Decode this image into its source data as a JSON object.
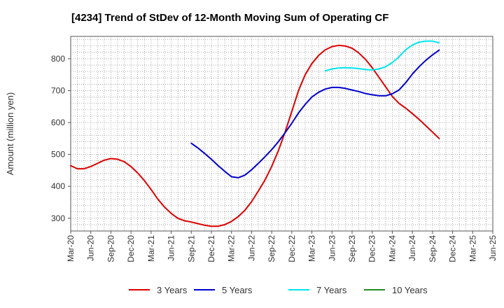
{
  "chart_data": {
    "type": "line",
    "title": "[4234]  Trend of StDev of 12-Month Moving Sum of Operating CF",
    "xlabel": "",
    "ylabel": "Amount (million yen)",
    "ylim": [
      260,
      870
    ],
    "yticks": [
      300,
      400,
      500,
      600,
      700,
      800
    ],
    "x_ticks": [
      "Mar-20",
      "Jun-20",
      "Sep-20",
      "Dec-20",
      "Mar-21",
      "Jun-21",
      "Sep-21",
      "Dec-21",
      "Mar-22",
      "Jun-22",
      "Sep-22",
      "Dec-22",
      "Mar-23",
      "Jun-23",
      "Sep-23",
      "Dec-23",
      "Mar-24",
      "Jun-24",
      "Sep-24",
      "Dec-24",
      "Mar-25",
      "Jun-25"
    ],
    "grid": true,
    "legend_position": "bottom",
    "series": [
      {
        "name": "3 Years",
        "color": "#dd0000",
        "points": [
          [
            0,
            465
          ],
          [
            1,
            455
          ],
          [
            2,
            455
          ],
          [
            3,
            462
          ],
          [
            4,
            472
          ],
          [
            5,
            482
          ],
          [
            6,
            487
          ],
          [
            7,
            485
          ],
          [
            8,
            477
          ],
          [
            9,
            462
          ],
          [
            10,
            442
          ],
          [
            11,
            418
          ],
          [
            12,
            390
          ],
          [
            13,
            360
          ],
          [
            14,
            335
          ],
          [
            15,
            315
          ],
          [
            16,
            300
          ],
          [
            17,
            292
          ],
          [
            18,
            288
          ],
          [
            19,
            283
          ],
          [
            20,
            278
          ],
          [
            21,
            275
          ],
          [
            22,
            275
          ],
          [
            23,
            280
          ],
          [
            24,
            290
          ],
          [
            25,
            305
          ],
          [
            26,
            325
          ],
          [
            27,
            352
          ],
          [
            28,
            385
          ],
          [
            29,
            420
          ],
          [
            30,
            462
          ],
          [
            31,
            512
          ],
          [
            32,
            570
          ],
          [
            33,
            635
          ],
          [
            34,
            700
          ],
          [
            35,
            750
          ],
          [
            36,
            785
          ],
          [
            37,
            810
          ],
          [
            38,
            828
          ],
          [
            39,
            838
          ],
          [
            40,
            842
          ],
          [
            41,
            840
          ],
          [
            42,
            833
          ],
          [
            43,
            818
          ],
          [
            44,
            798
          ],
          [
            45,
            772
          ],
          [
            46,
            742
          ],
          [
            47,
            712
          ],
          [
            48,
            682
          ],
          [
            49,
            660
          ],
          [
            50,
            645
          ],
          [
            51,
            628
          ],
          [
            52,
            610
          ],
          [
            53,
            590
          ],
          [
            54,
            570
          ],
          [
            55,
            550
          ]
        ]
      },
      {
        "name": "5 Years",
        "color": "#0000cc",
        "points": [
          [
            18,
            535
          ],
          [
            19,
            520
          ],
          [
            20,
            503
          ],
          [
            21,
            485
          ],
          [
            22,
            465
          ],
          [
            23,
            447
          ],
          [
            24,
            430
          ],
          [
            25,
            427
          ],
          [
            26,
            435
          ],
          [
            27,
            452
          ],
          [
            28,
            472
          ],
          [
            29,
            493
          ],
          [
            30,
            515
          ],
          [
            31,
            540
          ],
          [
            32,
            568
          ],
          [
            33,
            598
          ],
          [
            34,
            630
          ],
          [
            35,
            657
          ],
          [
            36,
            680
          ],
          [
            37,
            695
          ],
          [
            38,
            705
          ],
          [
            39,
            710
          ],
          [
            40,
            710
          ],
          [
            41,
            707
          ],
          [
            42,
            702
          ],
          [
            43,
            697
          ],
          [
            44,
            691
          ],
          [
            45,
            687
          ],
          [
            46,
            684
          ],
          [
            47,
            684
          ],
          [
            48,
            690
          ],
          [
            49,
            702
          ],
          [
            50,
            725
          ],
          [
            51,
            752
          ],
          [
            52,
            775
          ],
          [
            53,
            795
          ],
          [
            54,
            812
          ],
          [
            55,
            827
          ]
        ]
      },
      {
        "name": "7 Years",
        "color": "#00e5ee",
        "points": [
          [
            38,
            762
          ],
          [
            39,
            768
          ],
          [
            40,
            771
          ],
          [
            41,
            772
          ],
          [
            42,
            771
          ],
          [
            43,
            769
          ],
          [
            44,
            766
          ],
          [
            45,
            765
          ],
          [
            46,
            768
          ],
          [
            47,
            775
          ],
          [
            48,
            788
          ],
          [
            49,
            806
          ],
          [
            50,
            828
          ],
          [
            51,
            843
          ],
          [
            52,
            852
          ],
          [
            53,
            855
          ],
          [
            54,
            855
          ],
          [
            55,
            850
          ]
        ]
      },
      {
        "name": "10 Years",
        "color": "#228b22",
        "points": []
      }
    ]
  }
}
